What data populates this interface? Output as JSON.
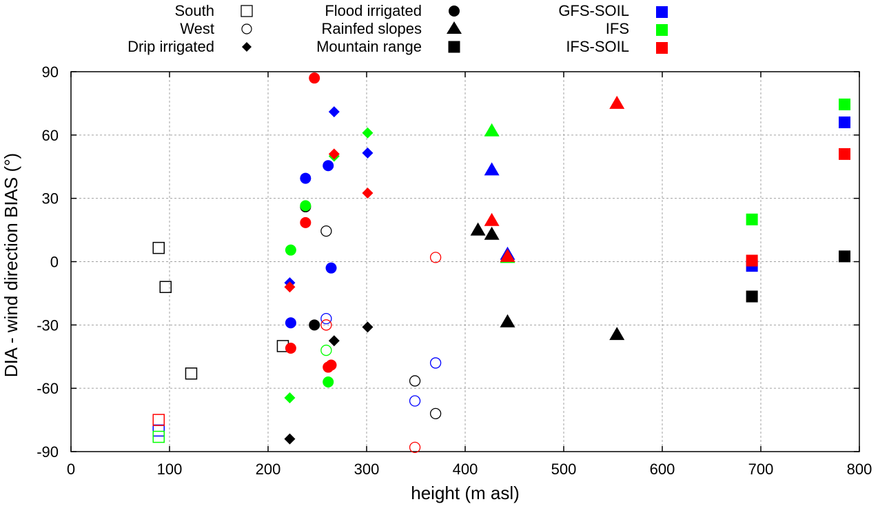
{
  "chart_data": {
    "type": "scatter",
    "title": "",
    "xlabel": "height (m asl)",
    "ylabel": "DIA - wind direction BIAS (°)",
    "xlim": [
      0,
      800
    ],
    "ylim": [
      -90,
      90
    ],
    "xticks": [
      0,
      100,
      200,
      300,
      400,
      500,
      600,
      700,
      800
    ],
    "yticks": [
      -90,
      -60,
      -30,
      0,
      30,
      60,
      90
    ],
    "grid": true,
    "legend_placement": "top-outside",
    "legend": {
      "shapes": [
        {
          "label": "South",
          "marker": "open-square"
        },
        {
          "label": "West",
          "marker": "open-circle"
        },
        {
          "label": "Drip irrigated",
          "marker": "diamond"
        },
        {
          "label": "Flood irrigated",
          "marker": "circle"
        },
        {
          "label": "Rainfed slopes",
          "marker": "triangle"
        },
        {
          "label": "Mountain range",
          "marker": "square"
        }
      ],
      "colors": [
        {
          "label": "GFS-SOIL",
          "color": "#0000ff"
        },
        {
          "label": "IFS",
          "color": "#00ff00"
        },
        {
          "label": "IFS-SOIL",
          "color": "#ff0000"
        }
      ]
    },
    "series": [
      {
        "name": "South - observed",
        "marker": "open-square",
        "color": "#000000",
        "points": [
          [
            89,
            6.5
          ],
          [
            96,
            -12
          ],
          [
            215,
            -40
          ],
          [
            122,
            -53
          ]
        ]
      },
      {
        "name": "South - GFS-SOIL",
        "marker": "open-square",
        "color": "#0000ff",
        "points": [
          [
            89,
            -80
          ]
        ]
      },
      {
        "name": "South - IFS",
        "marker": "open-square",
        "color": "#00ff00",
        "points": [
          [
            89,
            -83
          ]
        ]
      },
      {
        "name": "South - IFS-SOIL",
        "marker": "open-square",
        "color": "#ff0000",
        "points": [
          [
            89,
            -75
          ]
        ]
      },
      {
        "name": "West - observed",
        "marker": "open-circle",
        "color": "#000000",
        "points": [
          [
            259,
            14.5
          ],
          [
            349,
            -56.5
          ],
          [
            370,
            -72
          ]
        ]
      },
      {
        "name": "West - GFS-SOIL",
        "marker": "open-circle",
        "color": "#0000ff",
        "points": [
          [
            259,
            -27
          ],
          [
            370,
            -48
          ],
          [
            349,
            -66
          ]
        ]
      },
      {
        "name": "West - IFS",
        "marker": "open-circle",
        "color": "#00ff00",
        "points": [
          [
            259,
            -42
          ]
        ]
      },
      {
        "name": "West - IFS-SOIL",
        "marker": "open-circle",
        "color": "#ff0000",
        "points": [
          [
            259,
            -30
          ],
          [
            370,
            2
          ],
          [
            349,
            -88
          ]
        ]
      },
      {
        "name": "Drip irrigated - observed",
        "marker": "diamond",
        "color": "#000000",
        "points": [
          [
            267,
            -37.5
          ],
          [
            301,
            -31
          ],
          [
            222,
            -84
          ]
        ]
      },
      {
        "name": "Drip irrigated - GFS-SOIL",
        "marker": "diamond",
        "color": "#0000ff",
        "points": [
          [
            267,
            71
          ],
          [
            301,
            51.5
          ],
          [
            222,
            -10
          ]
        ]
      },
      {
        "name": "Drip irrigated - IFS",
        "marker": "diamond",
        "color": "#00ff00",
        "points": [
          [
            301,
            61
          ],
          [
            267,
            50
          ],
          [
            222,
            -64.5
          ]
        ]
      },
      {
        "name": "Drip irrigated - IFS-SOIL",
        "marker": "diamond",
        "color": "#ff0000",
        "points": [
          [
            267,
            51
          ],
          [
            301,
            32.5
          ],
          [
            222,
            -12
          ]
        ]
      },
      {
        "name": "Flood irrigated - observed",
        "marker": "circle",
        "color": "#000000",
        "points": [
          [
            238,
            26
          ],
          [
            247,
            -30
          ]
        ]
      },
      {
        "name": "Flood irrigated - GFS-SOIL",
        "marker": "circle",
        "color": "#0000ff",
        "points": [
          [
            238,
            39.5
          ],
          [
            261,
            45.5
          ],
          [
            264,
            -3
          ],
          [
            223,
            -29
          ]
        ]
      },
      {
        "name": "Flood irrigated - IFS",
        "marker": "circle",
        "color": "#00ff00",
        "points": [
          [
            238,
            26.5
          ],
          [
            223,
            5.5
          ],
          [
            261,
            -57
          ]
        ]
      },
      {
        "name": "Flood irrigated - IFS-SOIL",
        "marker": "circle",
        "color": "#ff0000",
        "points": [
          [
            247,
            87
          ],
          [
            238,
            18.5
          ],
          [
            223,
            -41
          ],
          [
            261,
            -50
          ],
          [
            264,
            -49
          ]
        ]
      },
      {
        "name": "Rainfed slopes - observed",
        "marker": "triangle",
        "color": "#000000",
        "points": [
          [
            413,
            15
          ],
          [
            427,
            13
          ],
          [
            443,
            -28.5
          ],
          [
            554,
            -34.5
          ]
        ]
      },
      {
        "name": "Rainfed slopes - GFS-SOIL",
        "marker": "triangle",
        "color": "#0000ff",
        "points": [
          [
            427,
            43.5
          ],
          [
            443,
            3.5
          ]
        ]
      },
      {
        "name": "Rainfed slopes - IFS",
        "marker": "triangle",
        "color": "#00ff00",
        "points": [
          [
            427,
            62
          ],
          [
            443,
            2
          ]
        ]
      },
      {
        "name": "Rainfed slopes - IFS-SOIL",
        "marker": "triangle",
        "color": "#ff0000",
        "points": [
          [
            554,
            75
          ],
          [
            427,
            19.5
          ],
          [
            443,
            2.5
          ]
        ]
      },
      {
        "name": "Mountain range - observed",
        "marker": "square",
        "color": "#000000",
        "points": [
          [
            691,
            -16.5
          ],
          [
            785,
            2.5
          ]
        ]
      },
      {
        "name": "Mountain range - GFS-SOIL",
        "marker": "square",
        "color": "#0000ff",
        "points": [
          [
            691,
            -2
          ],
          [
            785,
            66
          ]
        ]
      },
      {
        "name": "Mountain range - IFS",
        "marker": "square",
        "color": "#00ff00",
        "points": [
          [
            691,
            20
          ],
          [
            785,
            74.5
          ]
        ]
      },
      {
        "name": "Mountain range - IFS-SOIL",
        "marker": "square",
        "color": "#ff0000",
        "points": [
          [
            691,
            0.5
          ],
          [
            785,
            51
          ]
        ]
      }
    ]
  }
}
